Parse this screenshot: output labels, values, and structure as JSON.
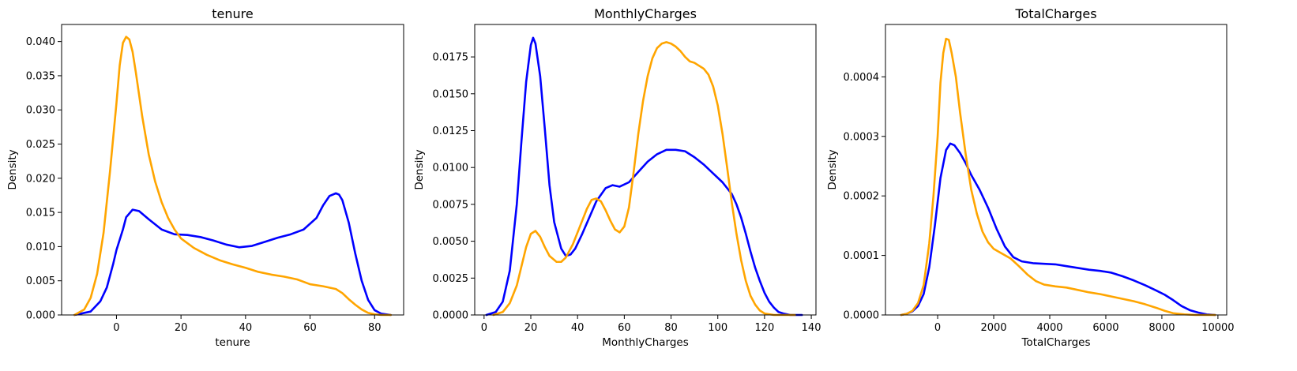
{
  "chart_data": [
    {
      "type": "line",
      "title": "tenure",
      "xlabel": "tenure",
      "ylabel": "Density",
      "xlim": [
        -17,
        89
      ],
      "ylim": [
        0,
        0.0425
      ],
      "xticks": [
        0,
        20,
        40,
        60,
        80
      ],
      "xtick_labels": [
        "0",
        "20",
        "40",
        "60",
        "80"
      ],
      "yticks": [
        0,
        0.005,
        0.01,
        0.015,
        0.02,
        0.025,
        0.03,
        0.035,
        0.04
      ],
      "ytick_labels": [
        "0.000",
        "0.005",
        "0.010",
        "0.015",
        "0.020",
        "0.025",
        "0.030",
        "0.035",
        "0.040"
      ],
      "grid": false,
      "series": [
        {
          "color": "#0000ff",
          "x": [
            -13,
            -8,
            -5,
            -3,
            -1,
            0,
            2,
            3,
            5,
            7,
            10,
            14,
            18,
            22,
            26,
            30,
            34,
            38,
            42,
            46,
            50,
            54,
            58,
            62,
            64,
            66,
            68,
            69,
            70,
            72,
            74,
            76,
            78,
            80,
            82,
            85
          ],
          "y": [
            0,
            0.0005,
            0.002,
            0.004,
            0.0075,
            0.0095,
            0.0125,
            0.0143,
            0.0154,
            0.0152,
            0.014,
            0.0125,
            0.0118,
            0.0117,
            0.0114,
            0.0109,
            0.0103,
            0.0099,
            0.0101,
            0.0107,
            0.0113,
            0.0118,
            0.0125,
            0.0142,
            0.016,
            0.0174,
            0.0178,
            0.0176,
            0.0168,
            0.0135,
            0.009,
            0.005,
            0.0022,
            0.0007,
            0.0002,
            0
          ]
        },
        {
          "color": "#ffa500",
          "x": [
            -13,
            -10,
            -8,
            -6,
            -4,
            -2,
            0,
            1,
            2,
            3,
            4,
            5,
            6,
            8,
            10,
            12,
            14,
            16,
            18,
            20,
            24,
            28,
            32,
            36,
            40,
            44,
            48,
            52,
            56,
            60,
            64,
            68,
            70,
            72,
            74,
            76,
            78,
            80,
            82,
            85
          ],
          "y": [
            0,
            0.0008,
            0.0025,
            0.006,
            0.012,
            0.021,
            0.031,
            0.0365,
            0.0398,
            0.0407,
            0.0403,
            0.0385,
            0.0355,
            0.029,
            0.0235,
            0.0195,
            0.0165,
            0.0142,
            0.0125,
            0.0112,
            0.0098,
            0.0088,
            0.008,
            0.0074,
            0.0069,
            0.0063,
            0.0059,
            0.0056,
            0.0052,
            0.0045,
            0.0042,
            0.0038,
            0.0032,
            0.0023,
            0.0015,
            0.0008,
            0.0003,
            0.0001,
            0,
            0
          ]
        }
      ]
    },
    {
      "type": "line",
      "title": "MonthlyCharges",
      "xlabel": "MonthlyCharges",
      "ylabel": "Density",
      "xlim": [
        -4,
        142
      ],
      "ylim": [
        0,
        0.0197
      ],
      "xticks": [
        0,
        20,
        40,
        60,
        80,
        100,
        120,
        140
      ],
      "xtick_labels": [
        "0",
        "20",
        "40",
        "60",
        "80",
        "100",
        "120",
        "140"
      ],
      "yticks": [
        0,
        0.0025,
        0.005,
        0.0075,
        0.01,
        0.0125,
        0.015,
        0.0175
      ],
      "ytick_labels": [
        "0.0000",
        "0.0025",
        "0.0050",
        "0.0075",
        "0.0100",
        "0.0125",
        "0.0150",
        "0.0175"
      ],
      "grid": false,
      "series": [
        {
          "color": "#0000ff",
          "x": [
            1,
            5,
            8,
            11,
            14,
            16,
            18,
            20,
            21,
            22,
            24,
            26,
            28,
            30,
            33,
            35,
            37,
            39,
            42,
            45,
            48,
            52,
            55,
            58,
            62,
            66,
            70,
            74,
            78,
            82,
            86,
            90,
            94,
            98,
            102,
            106,
            108,
            110,
            112,
            114,
            116,
            118,
            120,
            122,
            124,
            126,
            128,
            131,
            136
          ],
          "y": [
            0,
            0.0002,
            0.0009,
            0.003,
            0.0075,
            0.0118,
            0.0158,
            0.0183,
            0.0188,
            0.0184,
            0.0162,
            0.0126,
            0.0088,
            0.0063,
            0.0045,
            0.004,
            0.0041,
            0.0045,
            0.0055,
            0.0066,
            0.0077,
            0.0086,
            0.0088,
            0.0087,
            0.009,
            0.0097,
            0.0104,
            0.0109,
            0.0112,
            0.0112,
            0.0111,
            0.0107,
            0.0102,
            0.0096,
            0.009,
            0.0082,
            0.0075,
            0.0066,
            0.0055,
            0.0043,
            0.0032,
            0.0023,
            0.0015,
            0.0009,
            0.0005,
            0.0002,
            0.0001,
            0,
            0
          ]
        },
        {
          "color": "#ffa500",
          "x": [
            4,
            8,
            11,
            14,
            16,
            18,
            20,
            22,
            24,
            26,
            28,
            31,
            33,
            35,
            38,
            41,
            44,
            46,
            48,
            50,
            52,
            54,
            56,
            58,
            60,
            62,
            64,
            66,
            68,
            70,
            72,
            74,
            76,
            78,
            80,
            82,
            84,
            86,
            88,
            90,
            92,
            94,
            96,
            98,
            100,
            102,
            104,
            106,
            108,
            110,
            112,
            114,
            116,
            118,
            120,
            124,
            128,
            133
          ],
          "y": [
            0,
            0.0002,
            0.0008,
            0.002,
            0.0033,
            0.0046,
            0.0055,
            0.0057,
            0.0053,
            0.0046,
            0.004,
            0.0036,
            0.0036,
            0.0039,
            0.0048,
            0.006,
            0.0072,
            0.0078,
            0.0079,
            0.0077,
            0.0071,
            0.0064,
            0.0058,
            0.0056,
            0.006,
            0.0073,
            0.0097,
            0.0123,
            0.0145,
            0.0162,
            0.0174,
            0.0181,
            0.0184,
            0.0185,
            0.0184,
            0.0182,
            0.0179,
            0.0175,
            0.0172,
            0.0171,
            0.0169,
            0.0167,
            0.0163,
            0.0155,
            0.0142,
            0.0123,
            0.01,
            0.0076,
            0.0055,
            0.0037,
            0.0023,
            0.0013,
            0.0007,
            0.0003,
            0.0001,
            0,
            0,
            0
          ]
        }
      ]
    },
    {
      "type": "line",
      "title": "TotalCharges",
      "xlabel": "TotalCharges",
      "ylabel": "Density",
      "xlim": [
        -1862,
        10313
      ],
      "ylim": [
        0,
        0.000488
      ],
      "xticks": [
        0,
        2000,
        4000,
        6000,
        8000,
        10000
      ],
      "xtick_labels": [
        "0",
        "2000",
        "4000",
        "6000",
        "8000",
        "10000"
      ],
      "yticks": [
        0,
        0.0001,
        0.0002,
        0.0003,
        0.0004
      ],
      "ytick_labels": [
        "0.0000",
        "0.0001",
        "0.0002",
        "0.0003",
        "0.0004"
      ],
      "grid": false,
      "series": [
        {
          "color": "#0000ff",
          "x": [
            -1300,
            -1100,
            -900,
            -700,
            -500,
            -300,
            -100,
            100,
            300,
            450,
            600,
            800,
            1000,
            1200,
            1500,
            1800,
            2100,
            2400,
            2700,
            3000,
            3400,
            3800,
            4200,
            4600,
            5000,
            5400,
            5800,
            6200,
            6600,
            7000,
            7400,
            7800,
            8100,
            8400,
            8700,
            9000,
            9300,
            9600,
            9900
          ],
          "y": [
            0,
            2e-06,
            6e-06,
            1.5e-05,
            3.5e-05,
            8e-05,
            0.00015,
            0.00023,
            0.000277,
            0.000288,
            0.000285,
            0.000272,
            0.000255,
            0.000235,
            0.00021,
            0.00018,
            0.000145,
            0.000115,
            9.7e-05,
            9e-05,
            8.7e-05,
            8.6e-05,
            8.5e-05,
            8.2e-05,
            7.9e-05,
            7.6e-05,
            7.4e-05,
            7.1e-05,
            6.5e-05,
            5.8e-05,
            5e-05,
            4.1e-05,
            3.4e-05,
            2.5e-05,
            1.5e-05,
            8e-06,
            4e-06,
            1e-06,
            0
          ]
        },
        {
          "color": "#ffa500",
          "x": [
            -1300,
            -1100,
            -900,
            -700,
            -500,
            -300,
            -150,
            0,
            100,
            200,
            300,
            400,
            500,
            650,
            800,
            1000,
            1200,
            1400,
            1600,
            1800,
            2000,
            2300,
            2600,
            2900,
            3200,
            3500,
            3800,
            4200,
            4600,
            5000,
            5400,
            5800,
            6200,
            6600,
            7000,
            7400,
            7800,
            8100,
            8400,
            8800,
            9200,
            9900
          ],
          "y": [
            0,
            2e-06,
            7e-06,
            2e-05,
            5e-05,
            0.00012,
            0.0002,
            0.0003,
            0.00039,
            0.00044,
            0.000464,
            0.000462,
            0.00044,
            0.0004,
            0.00034,
            0.00027,
            0.00021,
            0.00017,
            0.00014,
            0.000122,
            0.000111,
            0.000103,
            9.5e-05,
            8.2e-05,
            6.8e-05,
            5.7e-05,
            5.1e-05,
            4.8e-05,
            4.6e-05,
            4.2e-05,
            3.8e-05,
            3.5e-05,
            3.1e-05,
            2.7e-05,
            2.3e-05,
            1.8e-05,
            1.2e-05,
            7e-06,
            3e-06,
            1e-06,
            0,
            0
          ]
        }
      ]
    }
  ]
}
